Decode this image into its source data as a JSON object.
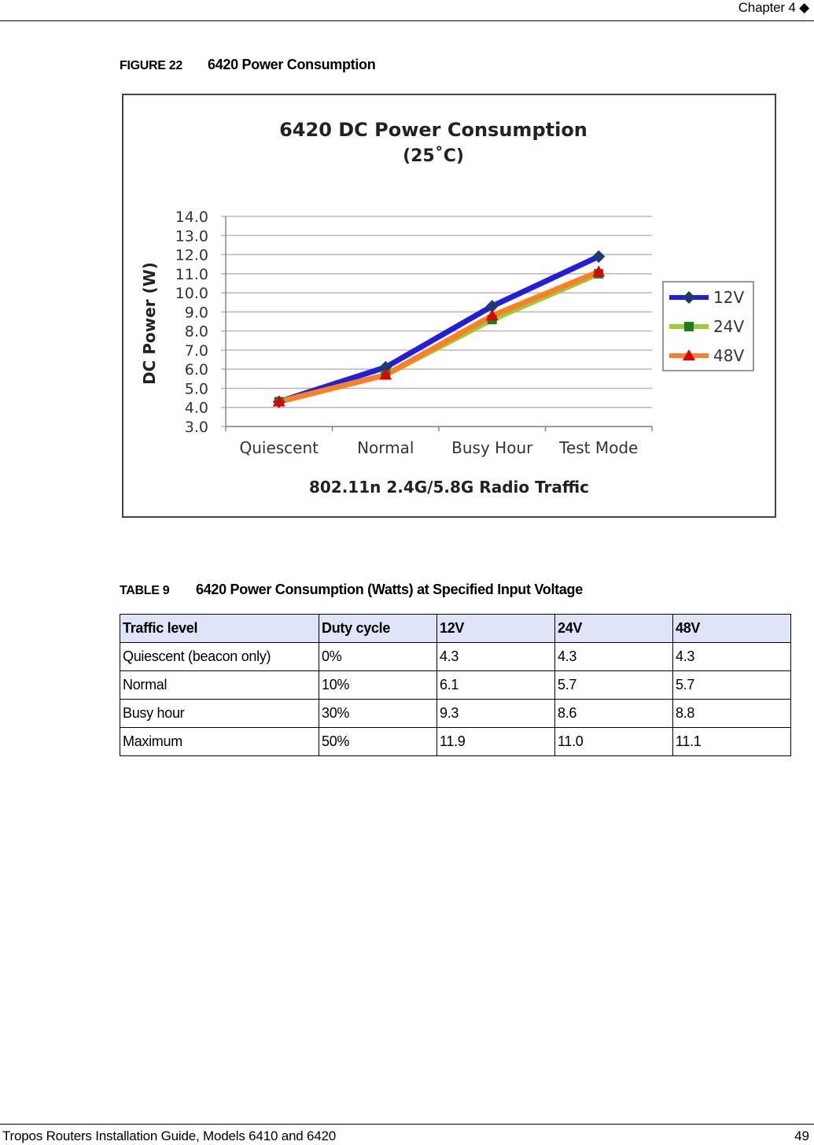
{
  "header": {
    "chapter": "Chapter 4 ◆"
  },
  "footer": {
    "title": "Tropos Routers Installation Guide, Models 6410 and 6420",
    "page": "49"
  },
  "figure": {
    "number": "FIGURE 22",
    "title": "6420 Power Consumption"
  },
  "chart_data": {
    "type": "line",
    "title": "6420 DC Power Consumption",
    "subtitle": "(25˚C)",
    "xlabel": "802.11n 2.4G/5.8G Radio Traffic",
    "ylabel": "DC Power (W)",
    "categories": [
      "Quiescent",
      "Normal",
      "Busy Hour",
      "Test Mode"
    ],
    "ylim": [
      3.0,
      14.0
    ],
    "yticks": [
      "3.0",
      "4.0",
      "5.0",
      "6.0",
      "7.0",
      "8.0",
      "9.0",
      "10.0",
      "11.0",
      "12.0",
      "13.0",
      "14.0"
    ],
    "grid": true,
    "legend_position": "right",
    "series": [
      {
        "name": "12V",
        "values": [
          4.3,
          6.1,
          9.3,
          11.9
        ],
        "color": "#1f1fdc",
        "marker": "diamond",
        "marker_color": "#1f3a6e"
      },
      {
        "name": "24V",
        "values": [
          4.3,
          5.7,
          8.6,
          11.0
        ],
        "color": "#9acd32",
        "marker": "square",
        "marker_color": "#1e7a1e"
      },
      {
        "name": "48V",
        "values": [
          4.3,
          5.7,
          8.8,
          11.1
        ],
        "color": "#ff7f27",
        "marker": "triangle",
        "marker_color": "#e00000"
      }
    ]
  },
  "table": {
    "number": "TABLE 9",
    "title": "6420 Power Consumption (Watts) at Specified Input Voltage",
    "headers": [
      "Traffic level",
      "Duty cycle",
      "12V",
      "24V",
      "48V"
    ],
    "rows": [
      [
        "Quiescent (beacon only)",
        "0%",
        "4.3",
        "4.3",
        "4.3"
      ],
      [
        "Normal",
        "10%",
        "6.1",
        "5.7",
        "5.7"
      ],
      [
        "Busy hour",
        "30%",
        "9.3",
        "8.6",
        "8.8"
      ],
      [
        "Maximum",
        "50%",
        "11.9",
        "11.0",
        "11.1"
      ]
    ]
  }
}
